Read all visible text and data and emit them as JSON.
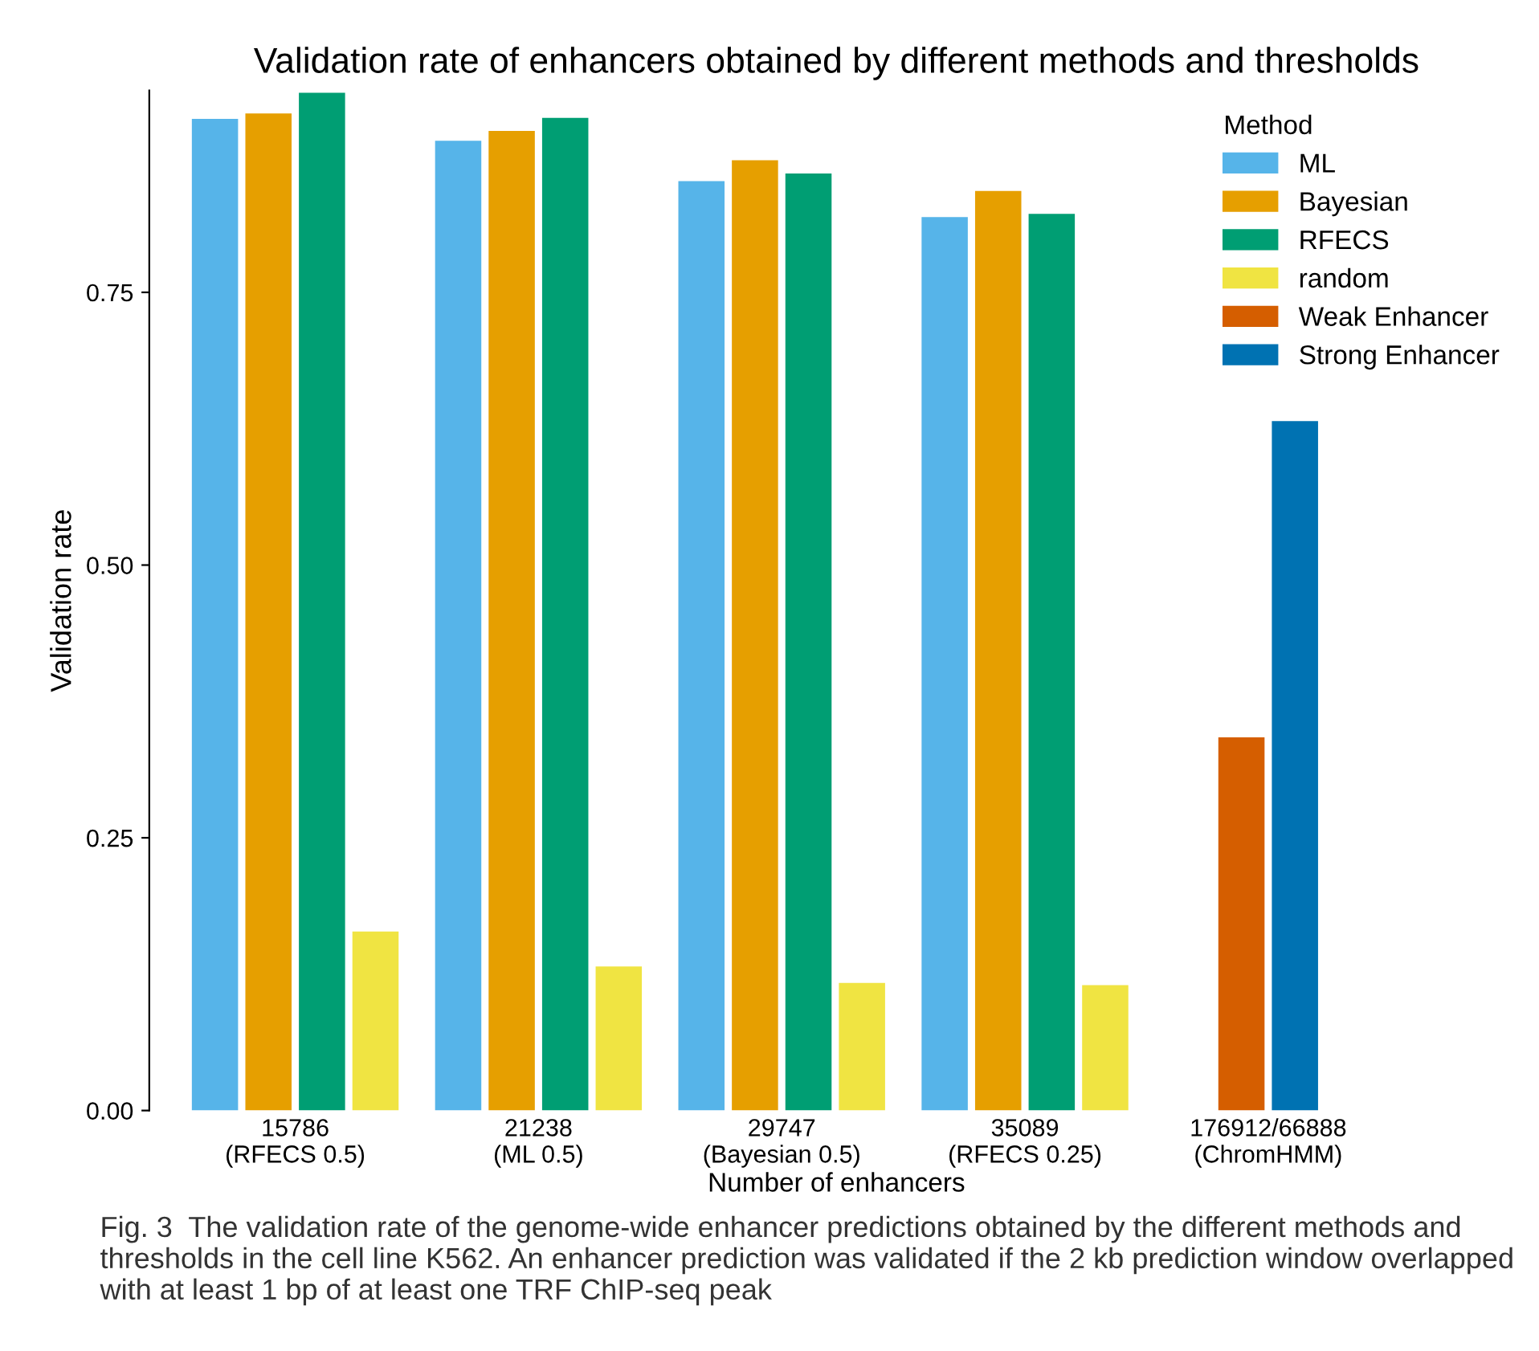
{
  "chart_data": {
    "type": "bar",
    "title": "Validation rate of enhancers obtained by different methods and thresholds",
    "xlabel": "Number of enhancers",
    "ylabel": "Validation rate",
    "legend_title": "Method",
    "categories": [
      "15786\n(RFECS 0.5)",
      "21238\n(ML 0.5)",
      "29747\n(Bayesian 0.5)",
      "35089\n(RFECS 0.25)",
      "176912/66888\n(ChromHMM)"
    ],
    "series": [
      {
        "name": "ML",
        "color": "#56b4e9",
        "values": [
          0.909,
          0.889,
          0.852,
          0.819,
          null
        ]
      },
      {
        "name": "Bayesian",
        "color": "#e69f00",
        "values": [
          0.914,
          0.898,
          0.871,
          0.843,
          null
        ]
      },
      {
        "name": "RFECS",
        "color": "#009e73",
        "values": [
          0.933,
          0.91,
          0.859,
          0.822,
          null
        ]
      },
      {
        "name": "random",
        "color": "#f0e442",
        "values": [
          0.164,
          0.132,
          0.117,
          0.115,
          null
        ]
      },
      {
        "name": "Weak Enhancer",
        "color": "#d55e00",
        "values": [
          null,
          null,
          null,
          null,
          0.342
        ]
      },
      {
        "name": "Strong Enhancer",
        "color": "#0072b2",
        "values": [
          null,
          null,
          null,
          null,
          0.632
        ]
      }
    ],
    "ylim": [
      0,
      0.935
    ],
    "yticks": [
      {
        "value": 0,
        "label": "0.00"
      },
      {
        "value": 0.25,
        "label": "0.25"
      },
      {
        "value": 0.5,
        "label": "0.50"
      },
      {
        "value": 0.75,
        "label": "0.75"
      }
    ],
    "grid": false,
    "legend": "top right",
    "annotations": [
      "Fig. 3  The validation rate of the genome-wide enhancer predictions obtained by the different methods and thresholds in the cell line K562. An enhancer prediction was validated if the 2 kb prediction window overlapped with at least 1 bp of at least one TRF ChIP-seq peak"
    ]
  }
}
